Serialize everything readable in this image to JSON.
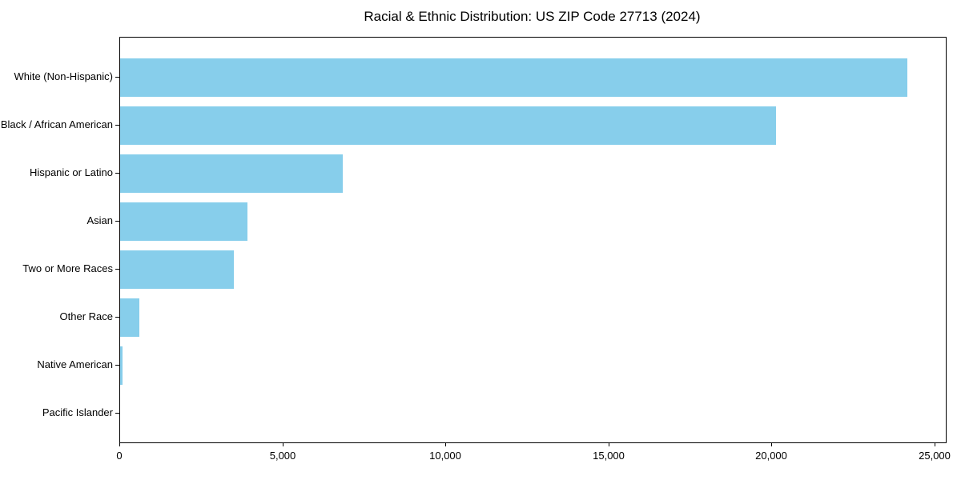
{
  "figure": {
    "title": "Racial & Ethnic Distribution: US ZIP Code 27713 (2024)"
  },
  "colors": {
    "bar": "#87CEEB",
    "spine": "#000000",
    "text": "#000000",
    "background": "#FFFFFF"
  },
  "chart_data": {
    "type": "bar",
    "orientation": "horizontal",
    "title": "Racial & Ethnic Distribution: US ZIP Code 27713 (2024)",
    "categories": [
      "White (Non-Hispanic)",
      "Black / African American",
      "Hispanic or Latino",
      "Asian",
      "Two or More Races",
      "Other Race",
      "Native American",
      "Pacific Islander"
    ],
    "values": [
      24140,
      20130,
      6820,
      3910,
      3480,
      600,
      75,
      0
    ],
    "xlabel": "",
    "ylabel": "",
    "xlim": [
      0,
      25330
    ],
    "xticks": [
      0,
      5000,
      10000,
      15000,
      20000,
      25000
    ],
    "xtick_labels": [
      "0",
      "5,000",
      "10,000",
      "15,000",
      "20,000",
      "25,000"
    ],
    "bar_color": "#87CEEB",
    "grid": false,
    "legend": null
  }
}
